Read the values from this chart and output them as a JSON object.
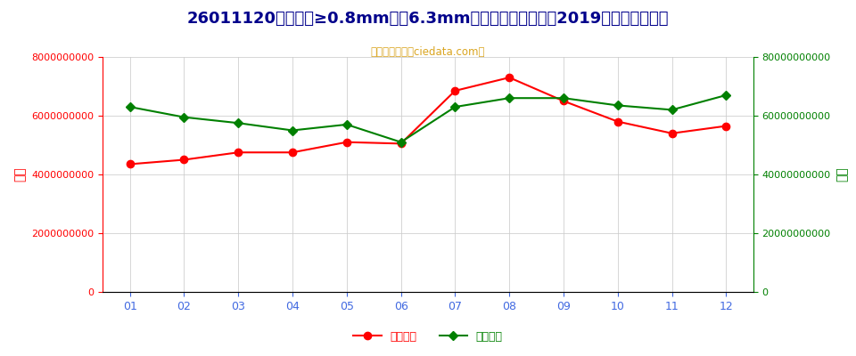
{
  "title": "26011120平均粒度≥0.8mm，＜6.3mm未烧结铁矿砂及精矿2019年进口月度走势",
  "subtitle": "进出口服务网（ciedata.com）",
  "months": [
    "01",
    "02",
    "03",
    "04",
    "05",
    "06",
    "07",
    "08",
    "09",
    "10",
    "11",
    "12"
  ],
  "import_usd": [
    4350000000,
    4500000000,
    4750000000,
    4750000000,
    5100000000,
    5050000000,
    6850000000,
    7300000000,
    6500000000,
    5800000000,
    5400000000,
    5650000000
  ],
  "import_qty": [
    63000000000,
    59500000000,
    57500000000,
    55000000000,
    57000000000,
    51000000000,
    63000000000,
    66000000000,
    66000000000,
    63500000000,
    62000000000,
    67000000000
  ],
  "left_label": "金额",
  "right_label": "数量",
  "left_ylim": [
    0,
    8000000000
  ],
  "right_ylim": [
    0,
    80000000000
  ],
  "left_yticks": [
    0,
    2000000000,
    4000000000,
    6000000000,
    8000000000
  ],
  "right_yticks": [
    0,
    20000000000,
    40000000000,
    60000000000,
    80000000000
  ],
  "line1_color": "#FF0000",
  "line2_color": "#008000",
  "line1_label": "进口美元",
  "line2_label": "进口数量",
  "bg_color": "#FFFFFF",
  "grid_color": "#CCCCCC",
  "title_color": "#00008B",
  "subtitle_color": "#DAA520",
  "axis_left_color": "#FF0000",
  "axis_right_color": "#008000"
}
